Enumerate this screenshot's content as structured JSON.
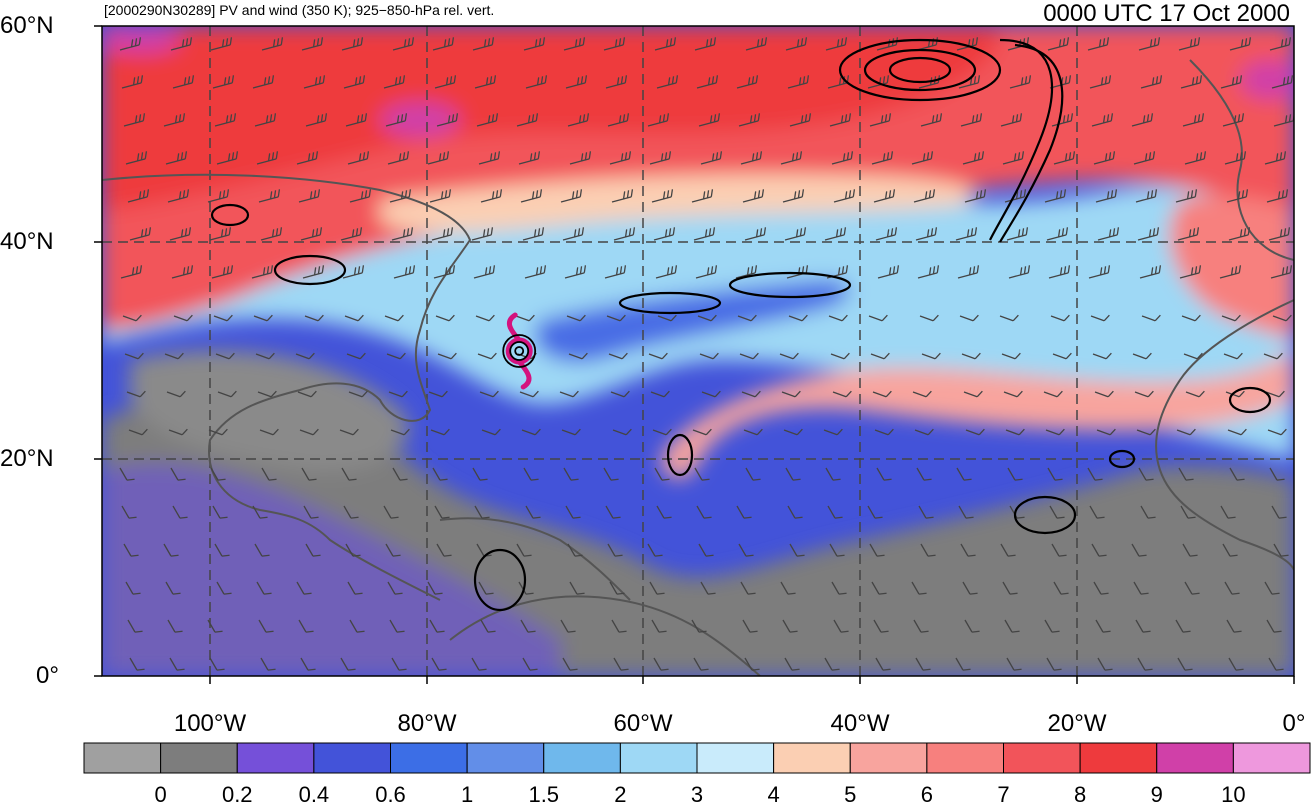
{
  "header": {
    "left_title": "[2000290N30289] PV and wind (350 K); 925−850-hPa rel. vert.",
    "right_title": "0000 UTC 17 Oct 2000"
  },
  "map": {
    "lon_min": -110,
    "lon_max": 0,
    "lat_min": 0,
    "lat_max": 60,
    "lat_ticks": [
      {
        "value": 60,
        "label": "60°N"
      },
      {
        "value": 40,
        "label": "40°N"
      },
      {
        "value": 20,
        "label": "20°N"
      },
      {
        "value": 0,
        "label": "0°"
      }
    ],
    "lon_ticks": [
      {
        "value": -100,
        "label": "100°W"
      },
      {
        "value": -80,
        "label": "80°W"
      },
      {
        "value": -60,
        "label": "60°W"
      },
      {
        "value": -40,
        "label": "40°W"
      },
      {
        "value": -20,
        "label": "20°W"
      },
      {
        "value": 0,
        "label": "0°"
      }
    ],
    "storm_center": {
      "lon": -71.5,
      "lat": 30
    },
    "colors": {
      "pv_high": "#f0474a",
      "pv_mid": "#9ed8f5",
      "pv_low": "#4a6de5",
      "pv_min": "#8a8a8a",
      "storm": "#d4127e",
      "coast": "#555555",
      "contour": "#000000"
    }
  },
  "colorbar": {
    "labels": [
      "0",
      "0.2",
      "0.4",
      "0.6",
      "1",
      "1.5",
      "2",
      "3",
      "4",
      "5",
      "6",
      "7",
      "8",
      "9",
      "10"
    ],
    "colors": [
      "#a0a0a0",
      "#7d7d7d",
      "#7550d9",
      "#4353d9",
      "#3c6ee6",
      "#628ee8",
      "#6fb8ec",
      "#9ed8f5",
      "#c9ebfb",
      "#fbcfb3",
      "#f8a49e",
      "#f7807e",
      "#f2545a",
      "#ee3a3d",
      "#d040a8",
      "#ee98dd"
    ]
  }
}
